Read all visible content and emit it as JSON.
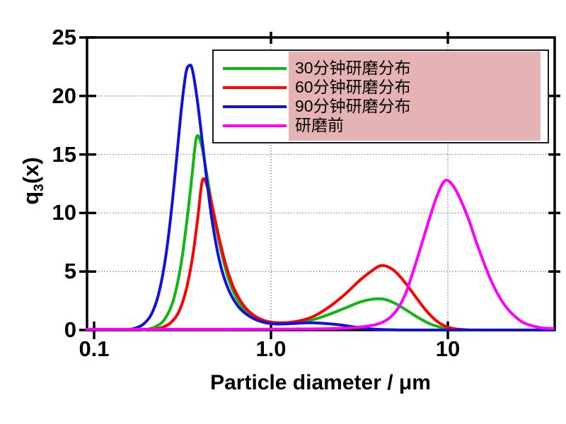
{
  "chart_data": {
    "type": "line",
    "title": "",
    "xlabel": "Particle diameter / μm",
    "ylabel": {
      "base": "q",
      "sub": "3",
      "rest": "(x)"
    },
    "x_scale": "log",
    "xlim": [
      0.091,
      39.3
    ],
    "ylim": [
      0,
      25
    ],
    "x_ticks": [
      {
        "value": 0.1,
        "label": "0.1"
      },
      {
        "value": 1,
        "label": "1.0"
      },
      {
        "value": 10,
        "label": "10"
      }
    ],
    "y_ticks": [
      {
        "value": 0,
        "label": "0"
      },
      {
        "value": 5,
        "label": "5"
      },
      {
        "value": 10,
        "label": "10"
      },
      {
        "value": 15,
        "label": "15"
      },
      {
        "value": 20,
        "label": "20"
      },
      {
        "value": 25,
        "label": "25"
      }
    ],
    "grid": {
      "h_lines": [
        5,
        10,
        15,
        20
      ],
      "v_lines": [
        1,
        10
      ],
      "style": "dotted",
      "color": "#8c8c8c"
    },
    "legend": {
      "position": "top-inside",
      "bg": "#ffffff",
      "border_color": "#1a1a1a",
      "text_bg": "#e5b3b3"
    },
    "series": [
      {
        "name": "30分钟研磨分布",
        "color": "#0eb80e",
        "points": [
          [
            0.19,
            0
          ],
          [
            0.22,
            0.25
          ],
          [
            0.25,
            0.9
          ],
          [
            0.28,
            2.5
          ],
          [
            0.31,
            5.6
          ],
          [
            0.34,
            10.2
          ],
          [
            0.36,
            13.6
          ],
          [
            0.38,
            16.5
          ],
          [
            0.405,
            15.8
          ],
          [
            0.43,
            13.6
          ],
          [
            0.47,
            10.2
          ],
          [
            0.52,
            6.9
          ],
          [
            0.58,
            4.2
          ],
          [
            0.66,
            2.35
          ],
          [
            0.76,
            1.3
          ],
          [
            0.9,
            0.75
          ],
          [
            1.1,
            0.57
          ],
          [
            1.35,
            0.6
          ],
          [
            1.7,
            0.85
          ],
          [
            2.1,
            1.3
          ],
          [
            2.6,
            1.85
          ],
          [
            3.2,
            2.4
          ],
          [
            3.7,
            2.62
          ],
          [
            4.3,
            2.65
          ],
          [
            5,
            2.3
          ],
          [
            5.9,
            1.65
          ],
          [
            6.9,
            1.0
          ],
          [
            8,
            0.5
          ],
          [
            9.2,
            0.22
          ],
          [
            10.5,
            0.08
          ],
          [
            12,
            0.02
          ],
          [
            15,
            0
          ],
          [
            39.3,
            0
          ]
        ]
      },
      {
        "name": "60分钟研磨分布",
        "color": "#ff0000",
        "points": [
          [
            0.21,
            0
          ],
          [
            0.24,
            0.2
          ],
          [
            0.27,
            0.6
          ],
          [
            0.3,
            1.5
          ],
          [
            0.33,
            3.3
          ],
          [
            0.36,
            6.2
          ],
          [
            0.385,
            9.5
          ],
          [
            0.41,
            12.8
          ],
          [
            0.44,
            12.1
          ],
          [
            0.47,
            10.3
          ],
          [
            0.51,
            7.8
          ],
          [
            0.56,
            5.4
          ],
          [
            0.62,
            3.5
          ],
          [
            0.7,
            2.1
          ],
          [
            0.8,
            1.25
          ],
          [
            0.93,
            0.78
          ],
          [
            1.1,
            0.62
          ],
          [
            1.35,
            0.7
          ],
          [
            1.7,
            1.1
          ],
          [
            2.1,
            1.9
          ],
          [
            2.6,
            3.0
          ],
          [
            3.1,
            4.1
          ],
          [
            3.6,
            4.9
          ],
          [
            4.2,
            5.5
          ],
          [
            4.9,
            5.15
          ],
          [
            5.7,
            4.1
          ],
          [
            6.6,
            2.8
          ],
          [
            7.6,
            1.6
          ],
          [
            8.6,
            0.8
          ],
          [
            9.6,
            0.35
          ],
          [
            10.8,
            0.12
          ],
          [
            12.5,
            0.03
          ],
          [
            15,
            0
          ],
          [
            39.3,
            0
          ]
        ]
      },
      {
        "name": "90分钟研磨分布",
        "color": "#1111dd",
        "points": [
          [
            0.15,
            0
          ],
          [
            0.17,
            0.15
          ],
          [
            0.19,
            0.5
          ],
          [
            0.21,
            1.3
          ],
          [
            0.23,
            2.9
          ],
          [
            0.25,
            5.6
          ],
          [
            0.27,
            9.4
          ],
          [
            0.29,
            14.0
          ],
          [
            0.31,
            18.6
          ],
          [
            0.33,
            21.9
          ],
          [
            0.345,
            22.6
          ],
          [
            0.36,
            22.2
          ],
          [
            0.385,
            19.4
          ],
          [
            0.42,
            14.6
          ],
          [
            0.46,
            9.8
          ],
          [
            0.51,
            6.0
          ],
          [
            0.57,
            3.6
          ],
          [
            0.65,
            2.05
          ],
          [
            0.75,
            1.2
          ],
          [
            0.88,
            0.72
          ],
          [
            1.05,
            0.52
          ],
          [
            1.3,
            0.55
          ],
          [
            1.65,
            0.62
          ],
          [
            2.05,
            0.55
          ],
          [
            2.5,
            0.42
          ],
          [
            3.0,
            0.25
          ],
          [
            3.6,
            0.11
          ],
          [
            4.2,
            0.04
          ],
          [
            5,
            0.01
          ],
          [
            6.5,
            0
          ],
          [
            39.3,
            0
          ]
        ]
      },
      {
        "name": "研磨前",
        "color": "#ff00ff",
        "points": [
          [
            0.091,
            0.06
          ],
          [
            0.5,
            0.06
          ],
          [
            1.0,
            0.07
          ],
          [
            1.6,
            0.09
          ],
          [
            2.2,
            0.12
          ],
          [
            2.8,
            0.18
          ],
          [
            3.4,
            0.3
          ],
          [
            4.0,
            0.5
          ],
          [
            4.6,
            0.95
          ],
          [
            5.2,
            1.8
          ],
          [
            5.8,
            3.2
          ],
          [
            6.4,
            5.1
          ],
          [
            7.1,
            7.3
          ],
          [
            7.9,
            9.6
          ],
          [
            8.7,
            11.5
          ],
          [
            9.6,
            12.75
          ],
          [
            10.5,
            12.5
          ],
          [
            11.5,
            11.5
          ],
          [
            13,
            9.6
          ],
          [
            14.5,
            7.5
          ],
          [
            16.5,
            5.2
          ],
          [
            18.5,
            3.5
          ],
          [
            21,
            2.1
          ],
          [
            24,
            1.15
          ],
          [
            27,
            0.6
          ],
          [
            31,
            0.3
          ],
          [
            35,
            0.16
          ],
          [
            39.3,
            0.12
          ]
        ]
      }
    ]
  }
}
